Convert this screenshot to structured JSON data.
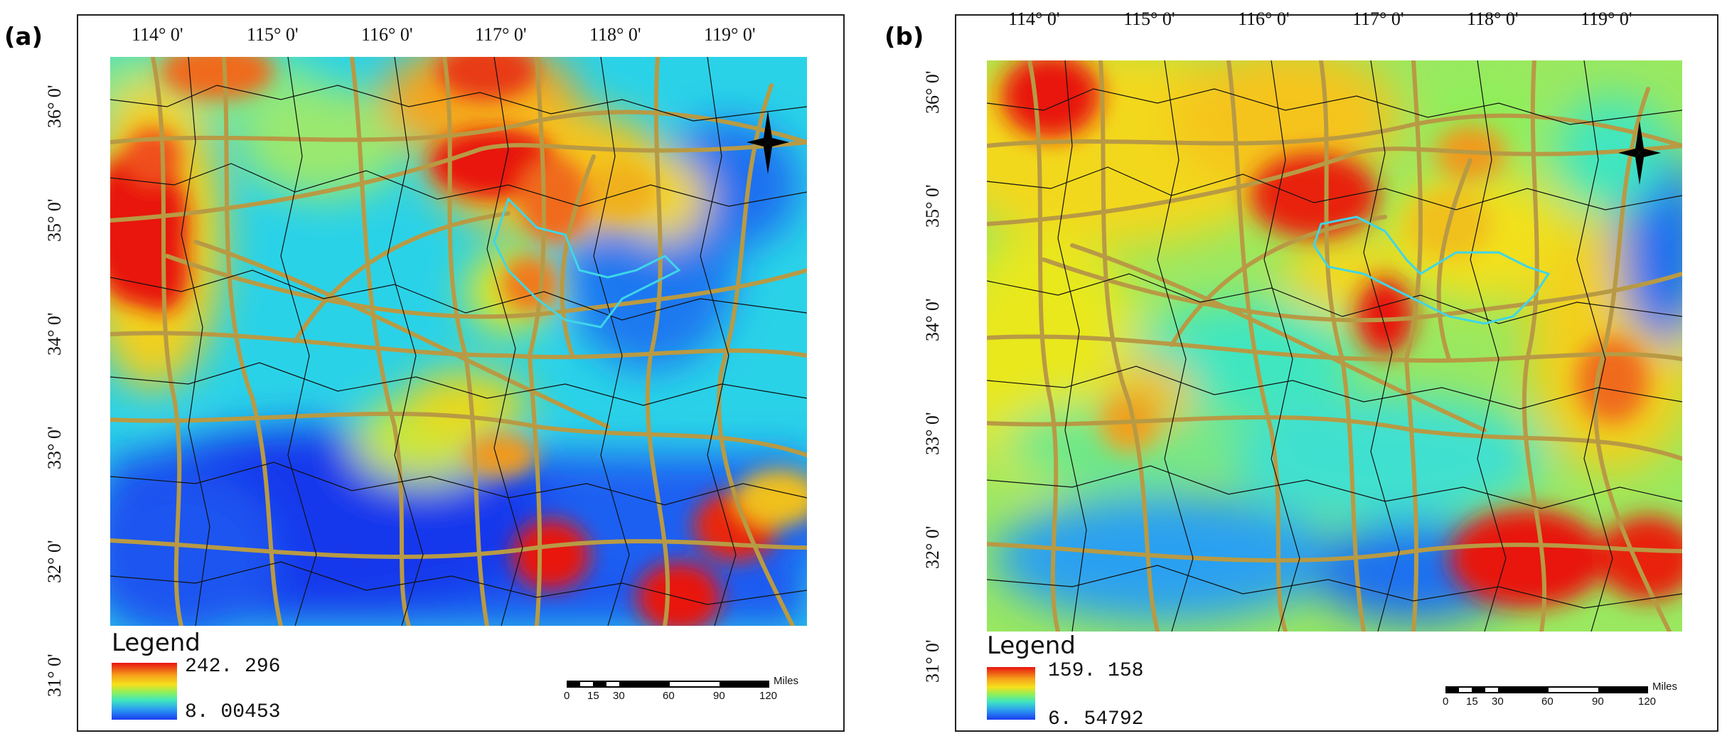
{
  "panels": [
    {
      "label": "(a)",
      "lon_ticks": [
        "114° 0'",
        "115° 0'",
        "116° 0'",
        "117° 0'",
        "118° 0'",
        "119° 0'"
      ],
      "lat_ticks": [
        "36° 0'",
        "35° 0'",
        "34° 0'",
        "33° 0'",
        "32° 0'",
        "31° 0'"
      ],
      "legend": {
        "title": "Legend",
        "max": "242. 296",
        "min": "8. 00453"
      },
      "scale": {
        "labels": [
          "0",
          "15",
          "30",
          "60",
          "90",
          "120"
        ],
        "unit": "Miles"
      }
    },
    {
      "label": "(b)",
      "lon_ticks": [
        "114° 0'",
        "115° 0'",
        "116° 0'",
        "117° 0'",
        "118° 0'",
        "119° 0'"
      ],
      "lat_ticks": [
        "36° 0'",
        "35° 0'",
        "34° 0'",
        "33° 0'",
        "32° 0'",
        "31° 0'"
      ],
      "legend": {
        "title": "Legend",
        "max": "159. 158",
        "min": "6. 54792"
      },
      "scale": {
        "labels": [
          "0",
          "15",
          "30",
          "60",
          "90",
          "120"
        ],
        "unit": "Miles"
      }
    }
  ],
  "colors": {
    "ramp_high": "#e8140f",
    "ramp_mid_high": "#f7e01c",
    "ramp_mid": "#3fe6c0",
    "ramp_low": "#1a3cf0",
    "road": "#b89a44",
    "boundary": "#111111",
    "highlight_boundary": "#3fd6e8"
  },
  "icons": [
    "north-arrow-icon"
  ]
}
